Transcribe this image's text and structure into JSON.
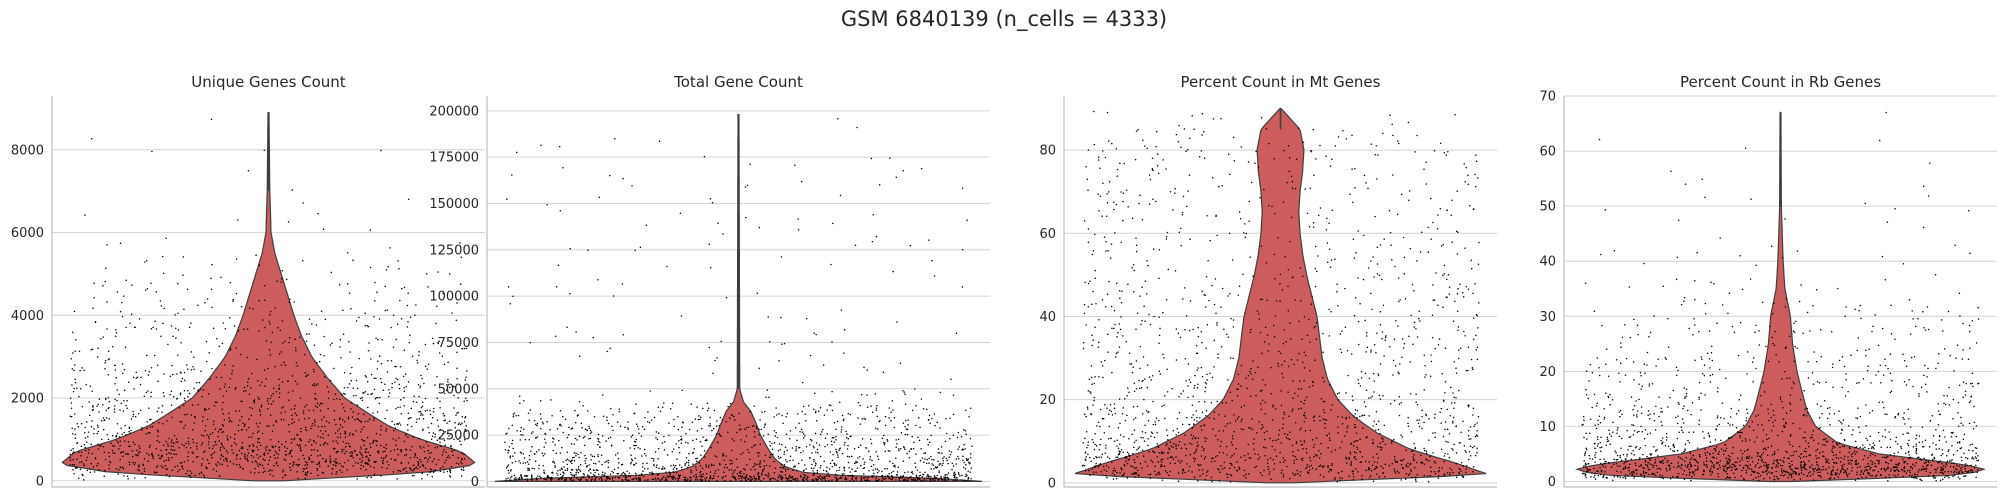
{
  "figure_title": "GSM 6840139 (n_cells = 4333)",
  "colors": {
    "violin_fill": "#cd5c5c",
    "violin_edge": "#3f3f3f",
    "points": "#000000",
    "grid": "#d4d4d4",
    "axis": "#bdbdbd"
  },
  "chart_data": [
    {
      "type": "violin",
      "title": "Unique Genes Count",
      "ylim": [
        -150,
        9300
      ],
      "yticks": [
        0,
        2000,
        4000,
        6000,
        8000
      ],
      "grid": true,
      "n_points": 4333,
      "max_value": 8900,
      "profile": [
        [
          0,
          0.06
        ],
        [
          200,
          0.62
        ],
        [
          400,
          0.82
        ],
        [
          700,
          0.76
        ],
        [
          1000,
          0.6
        ],
        [
          1300,
          0.48
        ],
        [
          1600,
          0.4
        ],
        [
          2000,
          0.3
        ],
        [
          2500,
          0.23
        ],
        [
          3000,
          0.17
        ],
        [
          3500,
          0.13
        ],
        [
          4000,
          0.1
        ],
        [
          4500,
          0.075
        ],
        [
          5000,
          0.05
        ],
        [
          5500,
          0.025
        ],
        [
          6000,
          0.01
        ],
        [
          7000,
          0.005
        ],
        [
          8900,
          0.002
        ]
      ]
    },
    {
      "type": "violin",
      "title": "Total Gene Count",
      "ylim": [
        -3000,
        208000
      ],
      "yticks": [
        0,
        25000,
        50000,
        75000,
        100000,
        125000,
        150000,
        175000,
        200000
      ],
      "grid": true,
      "n_points": 4333,
      "max_value": 198000,
      "profile": [
        [
          0,
          1.0
        ],
        [
          1500,
          0.85
        ],
        [
          3000,
          0.45
        ],
        [
          5000,
          0.26
        ],
        [
          8000,
          0.19
        ],
        [
          12000,
          0.15
        ],
        [
          18000,
          0.12
        ],
        [
          25000,
          0.09
        ],
        [
          32000,
          0.07
        ],
        [
          38000,
          0.05
        ],
        [
          43000,
          0.02
        ],
        [
          50000,
          0.005
        ],
        [
          198000,
          0.002
        ]
      ]
    },
    {
      "type": "violin",
      "title": "Percent Count in Mt Genes",
      "ylim": [
        -1,
        93
      ],
      "yticks": [
        0,
        20,
        40,
        60,
        80
      ],
      "grid": true,
      "n_points": 4333,
      "max_value": 90,
      "profile": [
        [
          0,
          0.05
        ],
        [
          2,
          0.8
        ],
        [
          5,
          0.66
        ],
        [
          8,
          0.5
        ],
        [
          12,
          0.37
        ],
        [
          16,
          0.28
        ],
        [
          20,
          0.22
        ],
        [
          25,
          0.18
        ],
        [
          30,
          0.16
        ],
        [
          35,
          0.15
        ],
        [
          40,
          0.14
        ],
        [
          45,
          0.12
        ],
        [
          50,
          0.1
        ],
        [
          55,
          0.085
        ],
        [
          60,
          0.075
        ],
        [
          65,
          0.07
        ],
        [
          70,
          0.075
        ],
        [
          75,
          0.085
        ],
        [
          80,
          0.09
        ],
        [
          85,
          0.075
        ],
        [
          90,
          0.002
        ]
      ]
    },
    {
      "type": "violin",
      "title": "Percent Count in Rb Genes",
      "ylim": [
        -1,
        70
      ],
      "yticks": [
        0,
        10,
        20,
        30,
        40,
        50,
        60,
        70
      ],
      "grid": true,
      "n_points": 4333,
      "max_value": 67,
      "profile": [
        [
          0,
          0.05
        ],
        [
          1,
          0.75
        ],
        [
          2,
          0.95
        ],
        [
          3,
          0.85
        ],
        [
          5,
          0.45
        ],
        [
          7,
          0.26
        ],
        [
          10,
          0.16
        ],
        [
          13,
          0.12
        ],
        [
          16,
          0.1
        ],
        [
          20,
          0.075
        ],
        [
          25,
          0.055
        ],
        [
          30,
          0.045
        ],
        [
          35,
          0.02
        ],
        [
          40,
          0.012
        ],
        [
          45,
          0.008
        ],
        [
          50,
          0.004
        ],
        [
          67,
          0.002
        ]
      ]
    }
  ]
}
